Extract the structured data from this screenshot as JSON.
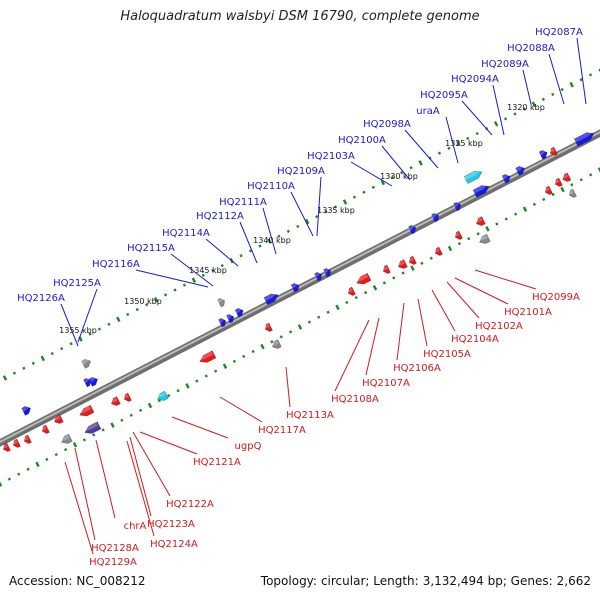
{
  "title": "Haloquadratum walsbyi DSM 16790, complete genome",
  "footer": {
    "accession_label": "Accession:",
    "accession": "NC_008212",
    "topology_label": "Topology:",
    "topology": "circular",
    "length_label": "Length:",
    "length": "3,132,494 bp",
    "genes_label": "Genes:",
    "genes": "2,662"
  },
  "colors": {
    "forward_label": "#1a1ad6",
    "reverse_label": "#d61a1a",
    "forward_gene": "#1a1ae6",
    "reverse_gene": "#e61a1a",
    "rna_gene": "#22c8e6",
    "pseudo_gene": "#888888",
    "other_gene": "#4a3c9c",
    "backbone": "#8a8a8a",
    "tick_dot": "#1a8a1a"
  },
  "kbp_ticks": [
    "1320 kbp",
    "1325 kbp",
    "1330 kbp",
    "1335 kbp",
    "1340 kbp",
    "1345 kbp",
    "1350 kbp",
    "1355 kbp"
  ],
  "forward_labels": [
    "HQ2087A",
    "HQ2088A",
    "HQ2089A",
    "HQ2094A",
    "HQ2095A",
    "uraA",
    "HQ2098A",
    "HQ2100A",
    "HQ2103A",
    "HQ2109A",
    "HQ2110A",
    "HQ2111A",
    "HQ2112A",
    "HQ2114A",
    "HQ2115A",
    "HQ2116A",
    "HQ2125A",
    "HQ2126A"
  ],
  "reverse_labels": [
    "HQ2099A",
    "HQ2101A",
    "HQ2102A",
    "HQ2104A",
    "HQ2105A",
    "HQ2106A",
    "HQ2107A",
    "HQ2108A",
    "HQ2113A",
    "HQ2117A",
    "ugpQ",
    "HQ2121A",
    "HQ2122A",
    "HQ2123A",
    "HQ2124A",
    "chrA",
    "HQ2128A",
    "HQ2129A"
  ]
}
